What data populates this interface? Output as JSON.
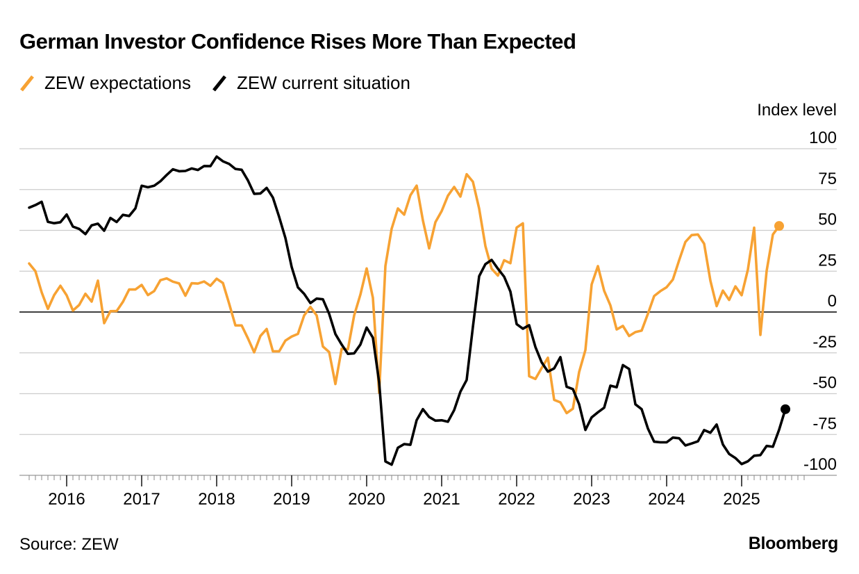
{
  "header": {
    "title": "German Investor Confidence Rises More Than Expected"
  },
  "footer": {
    "source": "Source: ZEW",
    "brand": "Bloomberg"
  },
  "colors": {
    "expectations": "#F7A233",
    "current": "#000000",
    "grid": "#cccccc",
    "zero_line": "#000000"
  },
  "chart_data": {
    "type": "line",
    "ylabel": "Index level",
    "ylim": [
      -100,
      100
    ],
    "y_ticks": [
      100,
      75,
      50,
      25,
      0,
      -25,
      -50,
      -75,
      -100
    ],
    "y_tick_labels": [
      "100",
      "75",
      "50",
      "25",
      "0",
      "-25",
      "-50",
      "-75",
      "-100"
    ],
    "x_tick_labels": [
      "2016",
      "2017",
      "2018",
      "2019",
      "2020",
      "2021",
      "2022",
      "2023",
      "2024",
      "2025"
    ],
    "x_start": "2015-07",
    "x_end": "2025-08",
    "grid": true,
    "legend_position": "top-left",
    "series": [
      {
        "name": "ZEW expectations",
        "color": "#F7A233",
        "end_marker": true,
        "values": [
          29.7,
          25.0,
          12.1,
          1.9,
          10.4,
          16.1,
          10.2,
          0.9,
          4.3,
          11.2,
          6.4,
          19.2,
          -6.8,
          0.5,
          0.6,
          6.2,
          13.8,
          13.8,
          16.6,
          10.4,
          12.8,
          19.5,
          20.6,
          18.6,
          17.5,
          10.0,
          17.6,
          17.4,
          18.7,
          16.1,
          20.4,
          17.8,
          5.1,
          -8.2,
          -8.2,
          -16.1,
          -24.7,
          -14.7,
          -10.4,
          -24.1,
          -24.1,
          -17.5,
          -15.0,
          -13.4,
          -2.1,
          3.1,
          -2.1,
          -21.1,
          -24.5,
          -44.1,
          -22.5,
          -22.8,
          -2.1,
          10.7,
          26.7,
          8.7,
          -49.5,
          28.2,
          51.0,
          63.4,
          59.6,
          71.5,
          77.4,
          56.1,
          39.0,
          55.0,
          61.8,
          71.2,
          76.6,
          70.7,
          84.4,
          79.8,
          63.3,
          40.4,
          26.5,
          22.3,
          31.7,
          29.9,
          51.7,
          54.3,
          -39.3,
          -41.0,
          -34.3,
          -28.0,
          -53.8,
          -55.3,
          -61.9,
          -59.2,
          -36.7,
          -23.3,
          16.9,
          28.1,
          13.0,
          4.1,
          -10.7,
          -8.5,
          -14.7,
          -12.3,
          -11.4,
          -1.1,
          9.8,
          12.8,
          15.2,
          19.9,
          31.7,
          42.9,
          47.1,
          47.5,
          41.8,
          19.2,
          3.6,
          13.1,
          7.4,
          15.7,
          10.3,
          26.0,
          51.6,
          -14.0,
          25.2,
          47.5,
          52.7
        ]
      },
      {
        "name": "ZEW current situation",
        "color": "#000000",
        "end_marker": true,
        "values": [
          63.9,
          65.5,
          67.5,
          55.2,
          54.4,
          55.0,
          59.7,
          52.3,
          50.9,
          47.7,
          53.1,
          54.1,
          49.8,
          57.6,
          55.1,
          59.5,
          58.8,
          63.5,
          77.3,
          76.4,
          77.3,
          80.1,
          83.9,
          87.4,
          86.2,
          86.4,
          87.9,
          87.0,
          89.4,
          89.3,
          95.2,
          92.3,
          90.7,
          87.6,
          87.1,
          80.6,
          72.4,
          72.6,
          76.0,
          70.1,
          58.2,
          45.3,
          27.6,
          15.1,
          11.1,
          5.5,
          8.2,
          7.8,
          -1.1,
          -13.5,
          -19.9,
          -25.6,
          -25.3,
          -19.9,
          -9.5,
          -15.7,
          -43.1,
          -91.5,
          -93.5,
          -83.1,
          -80.9,
          -81.3,
          -66.2,
          -59.5,
          -64.3,
          -66.5,
          -66.3,
          -67.2,
          -60.1,
          -48.8,
          -41.6,
          -9.1,
          21.9,
          29.3,
          31.9,
          26.5,
          21.6,
          12.5,
          -7.4,
          -10.2,
          -8.1,
          -21.4,
          -30.8,
          -36.5,
          -34.5,
          -27.6,
          -45.8,
          -47.2,
          -56.5,
          -72.2,
          -64.5,
          -61.4,
          -58.6,
          -45.1,
          -46.1,
          -32.5,
          -34.9,
          -56.5,
          -59.5,
          -71.3,
          -79.4,
          -79.8,
          -79.8,
          -76.9,
          -77.3,
          -81.7,
          -80.5,
          -79.2,
          -72.3,
          -73.9,
          -68.9,
          -81.1,
          -86.9,
          -89.4,
          -93.1,
          -91.4,
          -88.0,
          -87.6,
          -82.0,
          -82.5,
          -72.0,
          -59.5
        ]
      }
    ]
  }
}
